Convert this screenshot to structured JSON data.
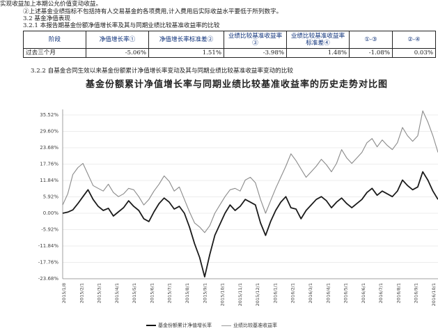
{
  "text": {
    "line1": "实现收益加上本期公允价值变动收益。",
    "line2": "②上述基金业绩指标不包括持有人交易基金的各项费用,计入费用后实际收益水平要低于所列数字。",
    "line3": "3.2 基金净值表现",
    "line4": "3.2.1 本报告期基金份额净值增长率及其与同期业绩比较基准收益率的比较",
    "line5": "3.2.2 自基金合同生效以来基金份额累计净值增长率变动及其与同期业绩比较基准收益率变动的比较"
  },
  "table": {
    "headers": [
      "阶段",
      "净值增长率①",
      "净值增长率标准差②",
      "业绩比较基准收益率③",
      "业绩比较基准收益率标准差④",
      "①-③",
      "②-④"
    ],
    "rows": [
      [
        "过去三个月",
        "-5.06%",
        "1.51%",
        "-3.98%",
        "1.48%",
        "-1.08%",
        "0.03%"
      ]
    ]
  },
  "chart_data": {
    "type": "line",
    "title": "基金份额累计净值增长率与同期业绩比较基准收益率的历史走势对比图",
    "y_ticks": [
      "35.52%",
      "29.60%",
      "23.68%",
      "17.76%",
      "11.84%",
      "5.92%",
      "0.00%",
      "-5.92%",
      "-11.84%",
      "-17.76%",
      "-23.68%"
    ],
    "ylim": [
      -23.68,
      35.52
    ],
    "x_ticks": [
      "2015/1/8",
      "2015/2/1",
      "2015/3/1",
      "2015/4/1",
      "2015/5/1",
      "2015/6/1",
      "2015/7/1",
      "2015/8/1",
      "2015/9/1",
      "2015/10/1",
      "2015/11/1",
      "2015/12/1",
      "2016/1/1",
      "2016/2/1",
      "2016/3/1",
      "2016/4/1",
      "2016/5/1",
      "2016/6/1",
      "2016/7/1",
      "2016/8/1",
      "2016/9/1",
      "2016/10/1"
    ],
    "series": [
      {
        "name": "基金份额累计净值增长率",
        "color": "#1a1a1a",
        "values": [
          0.0,
          0.4,
          1.2,
          3.5,
          6.0,
          8.5,
          5.0,
          2.5,
          1.0,
          1.8,
          -1.0,
          0.5,
          2.0,
          4.5,
          2.5,
          1.0,
          -2.0,
          -3.0,
          0.5,
          3.5,
          5.5,
          4.0,
          1.5,
          2.5,
          0.0,
          -5.0,
          -11.0,
          -16.0,
          -23.0,
          -15.0,
          -8.0,
          -4.0,
          0.0,
          3.0,
          1.0,
          2.5,
          5.0,
          4.0,
          3.0,
          -3.5,
          -8.0,
          -3.0,
          1.0,
          4.0,
          6.0,
          2.0,
          1.5,
          -2.0,
          1.0,
          3.0,
          5.0,
          6.0,
          4.5,
          2.0,
          4.0,
          5.5,
          3.5,
          2.0,
          3.5,
          5.0,
          7.5,
          9.0,
          6.5,
          8.0,
          7.0,
          6.0,
          8.0,
          12.0,
          10.0,
          8.5,
          9.5,
          15.0,
          12.0,
          8.0,
          5.0
        ]
      },
      {
        "name": "业绩比较基准收益率",
        "color": "#8a8a8a",
        "values": [
          3.0,
          7.0,
          14.0,
          16.5,
          18.0,
          14.0,
          10.0,
          9.0,
          8.0,
          10.5,
          7.5,
          6.0,
          7.0,
          9.0,
          8.5,
          6.0,
          3.0,
          5.0,
          8.0,
          10.5,
          13.5,
          11.5,
          8.0,
          9.5,
          5.0,
          0.5,
          -3.5,
          -5.0,
          -7.0,
          -4.5,
          0.0,
          3.0,
          6.0,
          8.5,
          9.0,
          8.0,
          12.0,
          13.0,
          11.0,
          5.0,
          0.0,
          4.5,
          9.0,
          13.0,
          17.0,
          21.5,
          19.0,
          16.0,
          13.0,
          15.0,
          17.0,
          19.5,
          17.5,
          15.0,
          18.0,
          23.0,
          20.0,
          18.0,
          20.0,
          22.0,
          25.5,
          27.0,
          24.0,
          26.5,
          24.5,
          23.0,
          25.5,
          31.0,
          28.0,
          26.0,
          28.0,
          37.0,
          33.0,
          28.0,
          22.0
        ]
      }
    ],
    "legend": [
      "基金份额累计净值增长率",
      "业绩比较基准收益率"
    ],
    "legend_position": "bottom"
  }
}
